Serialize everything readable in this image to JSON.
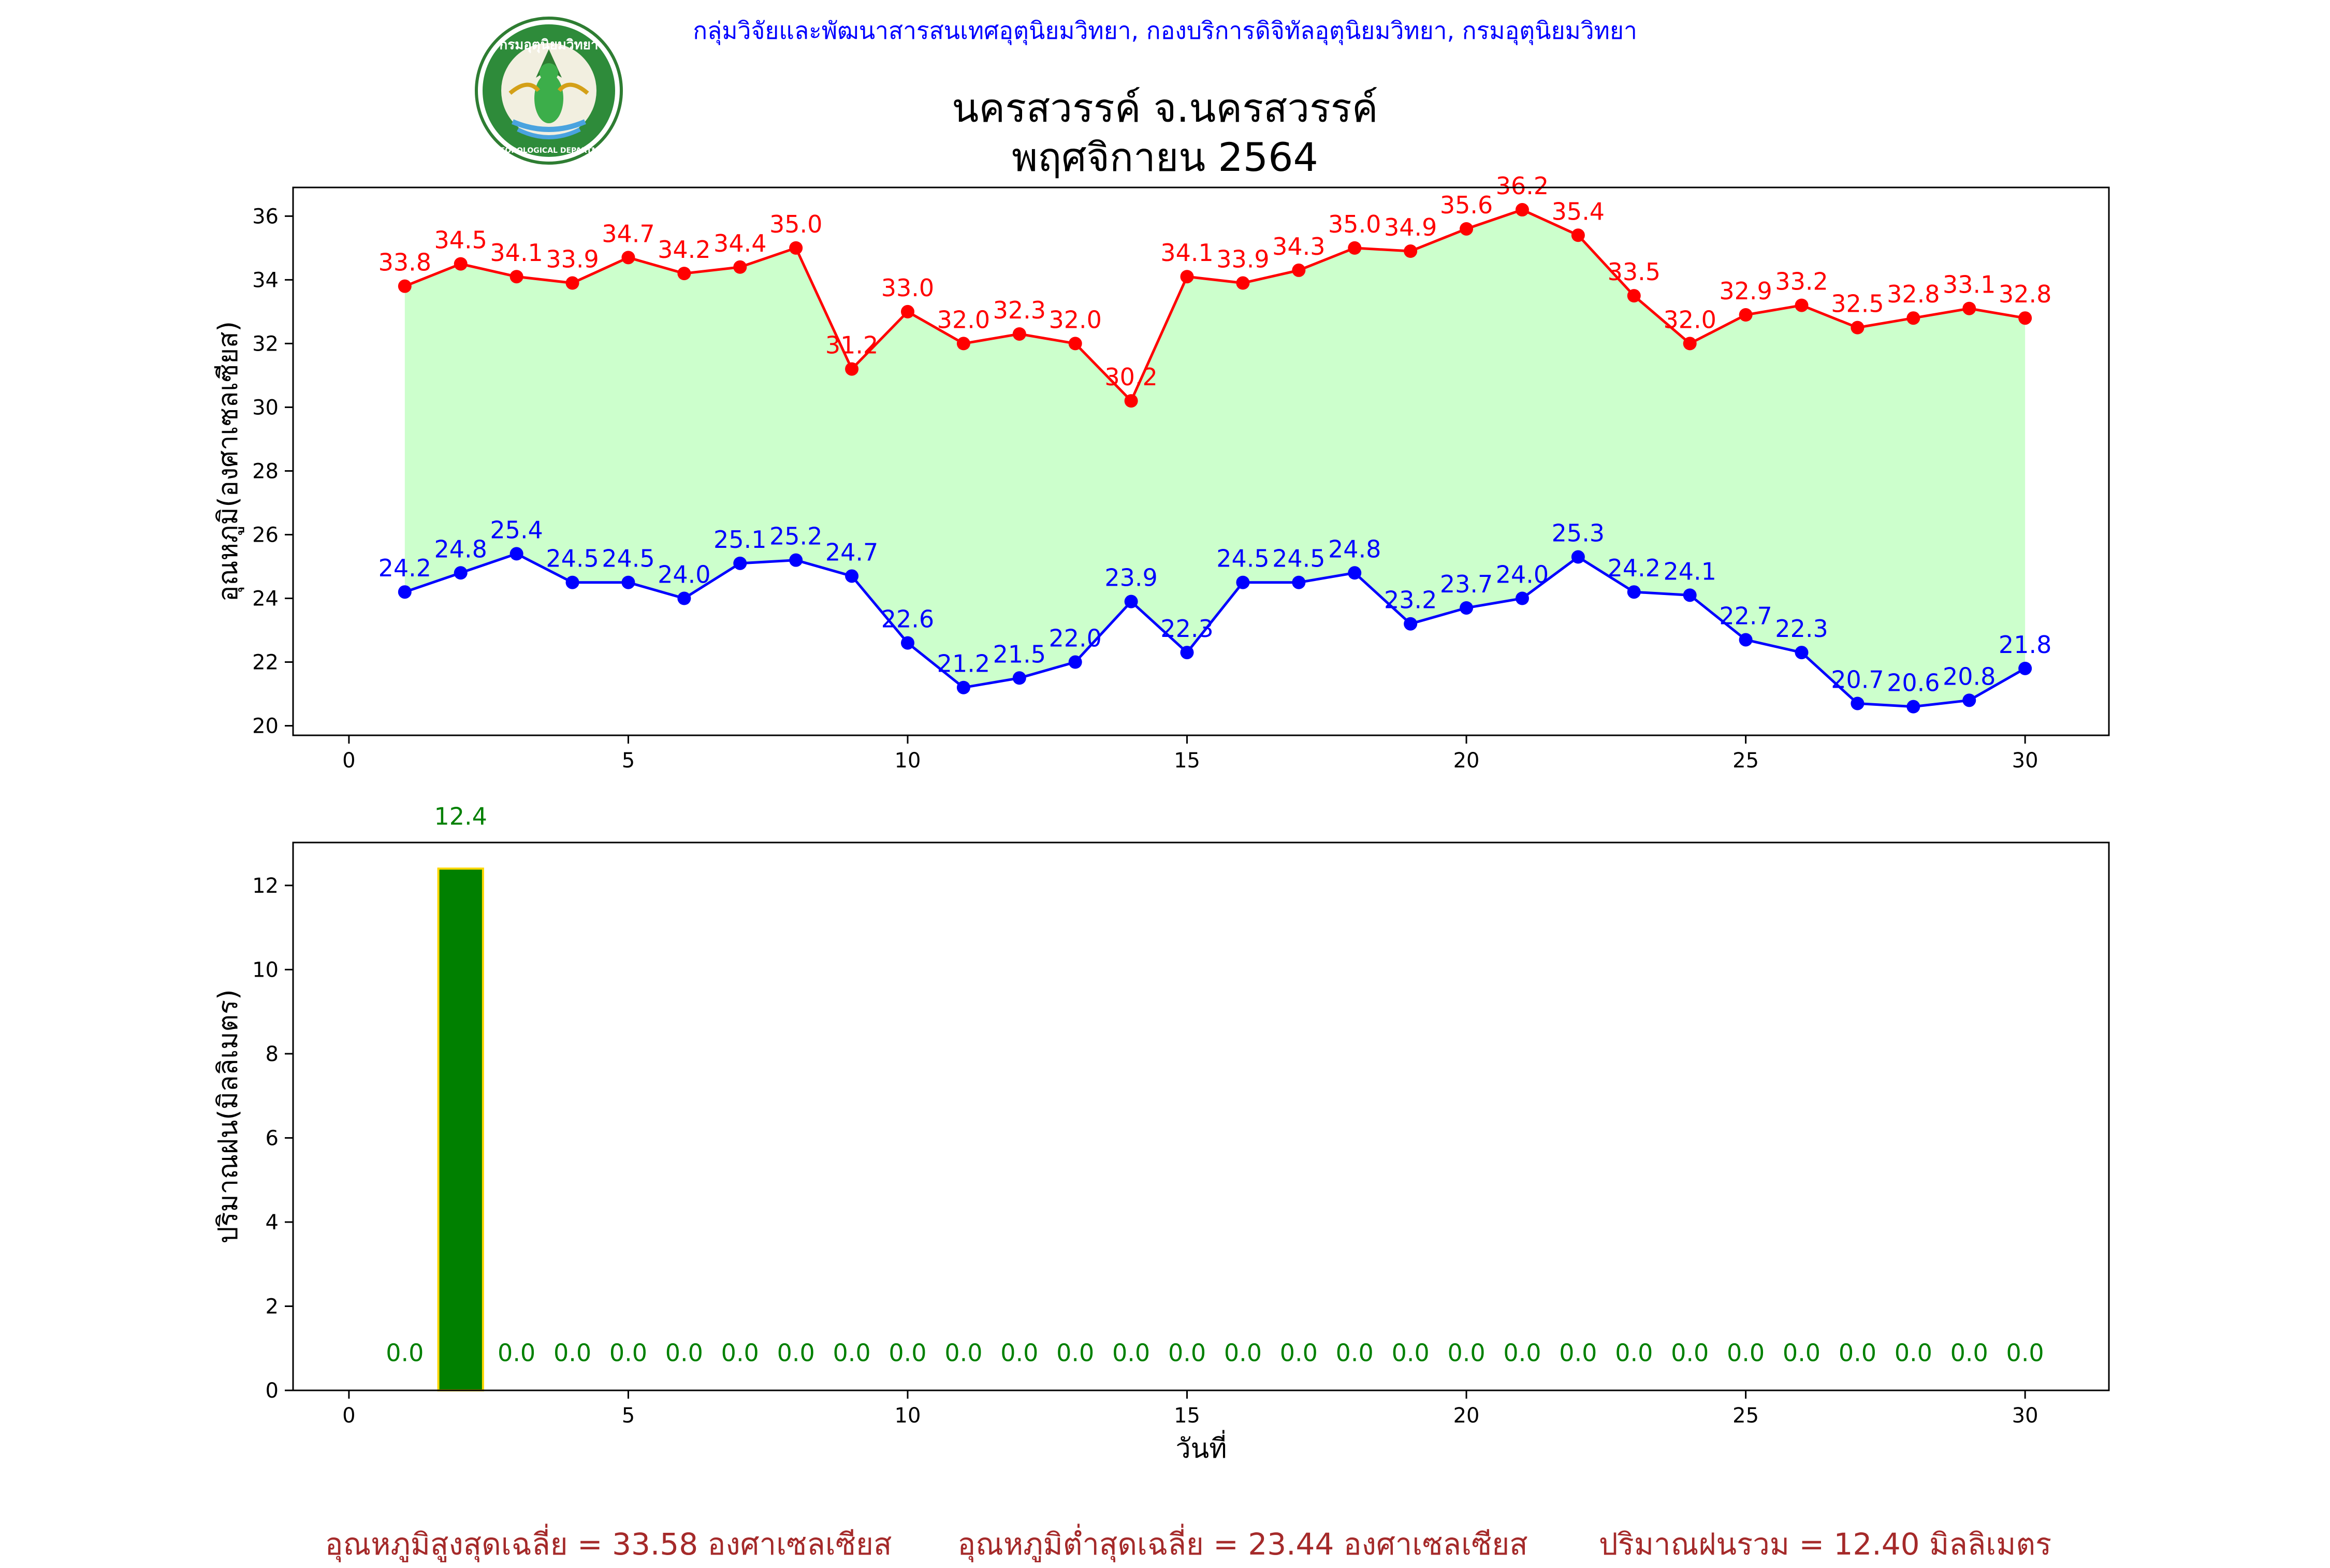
{
  "header": {
    "agency": "กลุ่มวิจัยและพัฒนาสารสนเทศอุตุนิยมวิทยา, กองบริการดิจิทัลอุตุนิยมวิทยา, กรมอุตุนิยมวิทยา",
    "logo_text_top": "กรมอุตุนิยมวิทยา",
    "logo_text_bottom": "METEOROLOGICAL DEPARTMENT",
    "title_line1": "นครสวรรค์  จ.นครสวรรค์",
    "title_line2": "พฤศจิกายน 2564"
  },
  "colors": {
    "max": "#ff0000",
    "min": "#0000ff",
    "fill": "#ccffcc",
    "rain_bar": "#008000",
    "rain_edge": "#ffd700",
    "rain_label": "#008000",
    "agency": "#0000ff",
    "summary": "#a52a2a"
  },
  "chart_data": [
    {
      "type": "line",
      "ylabel": "อุณหภูมิ(องศาเซลเซียส)",
      "xlabel": "",
      "xlim": [
        -1,
        31.5
      ],
      "ylim": [
        19.7,
        36.9
      ],
      "xticks": [
        0,
        5,
        10,
        15,
        20,
        25,
        30
      ],
      "yticks": [
        20,
        22,
        24,
        26,
        28,
        30,
        32,
        34,
        36
      ],
      "grid": false,
      "fill_between": true,
      "x": [
        1,
        2,
        3,
        4,
        5,
        6,
        7,
        8,
        9,
        10,
        11,
        12,
        13,
        14,
        15,
        16,
        17,
        18,
        19,
        20,
        21,
        22,
        23,
        24,
        25,
        26,
        27,
        28,
        29,
        30
      ],
      "series": [
        {
          "name": "",
          "color": "#ff0000",
          "values": [
            33.8,
            34.5,
            34.1,
            33.9,
            34.7,
            34.2,
            34.4,
            35.0,
            31.2,
            33.0,
            32.0,
            32.3,
            32.0,
            30.2,
            34.1,
            33.9,
            34.3,
            35.0,
            34.9,
            35.6,
            36.2,
            35.4,
            33.5,
            32.0,
            32.9,
            33.2,
            32.5,
            32.8,
            33.1,
            32.8
          ]
        },
        {
          "name": "",
          "color": "#0000ff",
          "values": [
            24.2,
            24.8,
            25.4,
            24.5,
            24.5,
            24.0,
            25.1,
            25.2,
            24.7,
            22.6,
            21.2,
            21.5,
            22.0,
            23.9,
            22.3,
            24.5,
            24.5,
            24.8,
            23.2,
            23.7,
            24.0,
            25.3,
            24.2,
            24.1,
            22.7,
            22.3,
            20.7,
            20.6,
            20.8,
            21.8
          ]
        }
      ]
    },
    {
      "type": "bar",
      "ylabel": "ปริมาณฝน(มิลลิเมตร)",
      "xlabel": "วันที่",
      "xlim": [
        -1,
        31.5
      ],
      "ylim": [
        0,
        13.02
      ],
      "xticks": [
        0,
        5,
        10,
        15,
        20,
        25,
        30
      ],
      "yticks": [
        0,
        2,
        4,
        6,
        8,
        10,
        12
      ],
      "grid": false,
      "categories": [
        1,
        2,
        3,
        4,
        5,
        6,
        7,
        8,
        9,
        10,
        11,
        12,
        13,
        14,
        15,
        16,
        17,
        18,
        19,
        20,
        21,
        22,
        23,
        24,
        25,
        26,
        27,
        28,
        29,
        30
      ],
      "values": [
        0.0,
        12.4,
        0.0,
        0.0,
        0.0,
        0.0,
        0.0,
        0.0,
        0.0,
        0.0,
        0.0,
        0.0,
        0.0,
        0.0,
        0.0,
        0.0,
        0.0,
        0.0,
        0.0,
        0.0,
        0.0,
        0.0,
        0.0,
        0.0,
        0.0,
        0.0,
        0.0,
        0.0,
        0.0,
        0.0
      ]
    }
  ],
  "summary": {
    "avg_max": "อุณหภูมิสูงสุดเฉลี่ย = 33.58 องศาเซลเซียส",
    "avg_min": "อุณหภูมิต่ำสุดเฉลี่ย = 23.44 องศาเซลเซียส",
    "total_rain": "ปริมาณฝนรวม = 12.40 มิลลิเมตร"
  }
}
